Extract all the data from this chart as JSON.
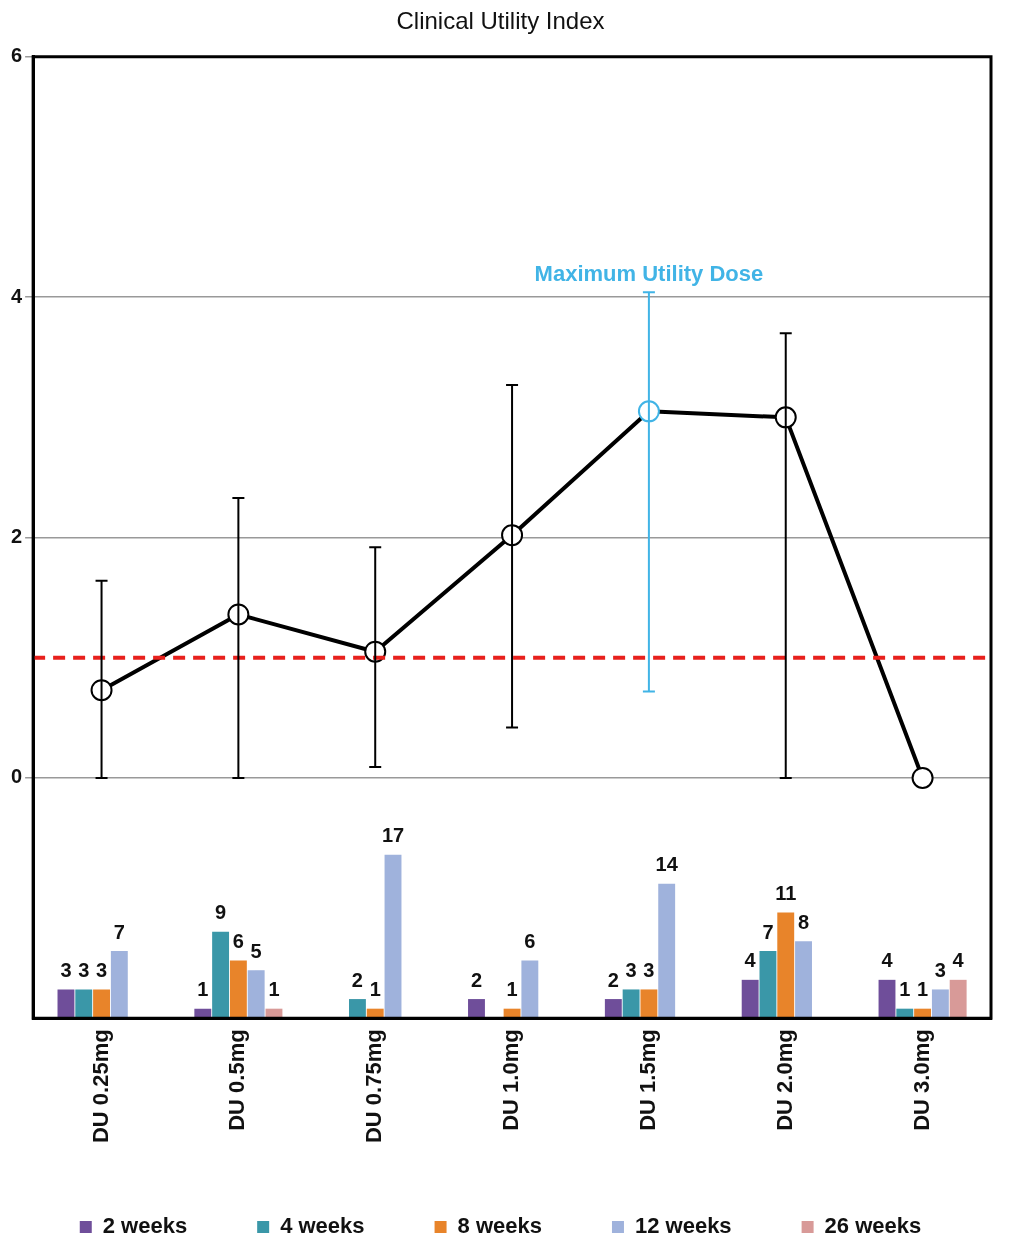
{
  "chart_data": {
    "type": "line",
    "title": "Clinical Utility Index",
    "categories": [
      "DU 0.25mg",
      "DU 0.5mg",
      "DU 0.75mg",
      "DU 1.0mg",
      "DU 1.5mg",
      "DU 2.0mg",
      "DU 3.0mg"
    ],
    "series": [
      {
        "type": "bar",
        "axis": "y2",
        "name": "2 weeks",
        "color": "#6f4e9a",
        "data_labels": true,
        "values": [
          3,
          1,
          null,
          2,
          2,
          4,
          4
        ]
      },
      {
        "type": "bar",
        "axis": "y2",
        "name": "4 weeks",
        "color": "#3a97a8",
        "data_labels": true,
        "values": [
          3,
          9,
          2,
          null,
          3,
          7,
          1
        ]
      },
      {
        "type": "bar",
        "axis": "y2",
        "name": "8 weeks",
        "color": "#e8842a",
        "data_labels": true,
        "values": [
          3,
          6,
          1,
          1,
          3,
          11,
          1
        ]
      },
      {
        "type": "bar",
        "axis": "y2",
        "name": "12 weeks",
        "color": "#9fb2dc",
        "data_labels": true,
        "values": [
          7,
          5,
          17,
          6,
          14,
          8,
          3
        ]
      },
      {
        "type": "bar",
        "axis": "y2",
        "name": "26 weeks",
        "color": "#d89a98",
        "data_labels": true,
        "values": [
          null,
          1,
          null,
          null,
          null,
          null,
          4
        ]
      },
      {
        "color": "#000000",
        "colors": [
          "#000000",
          "#000000",
          "#000000",
          "#000000",
          "#41b4e6",
          "#000000",
          "#000000"
        ],
        "marker": "circle",
        "values": [
          0.73,
          1.36,
          1.05,
          2.02,
          3.05,
          3.0,
          0.0
        ],
        "errors": [
          [
            0,
            1.64
          ],
          [
            0,
            2.33
          ],
          [
            0.09,
            1.92
          ],
          [
            0.42,
            3.27
          ],
          [
            0.72,
            4.04
          ],
          [
            0,
            3.7
          ],
          null
        ]
      }
    ],
    "ylim": [
      -2,
      6
    ],
    "yticks": [
      0,
      2,
      4,
      6
    ],
    "y2lim": [
      0,
      100
    ],
    "grid": "y",
    "legend": "bottom",
    "ref_lines": [
      {
        "axis": "y",
        "value": 1,
        "color": "#e8201c",
        "line_style": "dashed"
      }
    ],
    "annotations": [
      {
        "text": "Maximum Utility Dose",
        "x": "DU 1.5mg",
        "y": 4.04
      }
    ]
  }
}
